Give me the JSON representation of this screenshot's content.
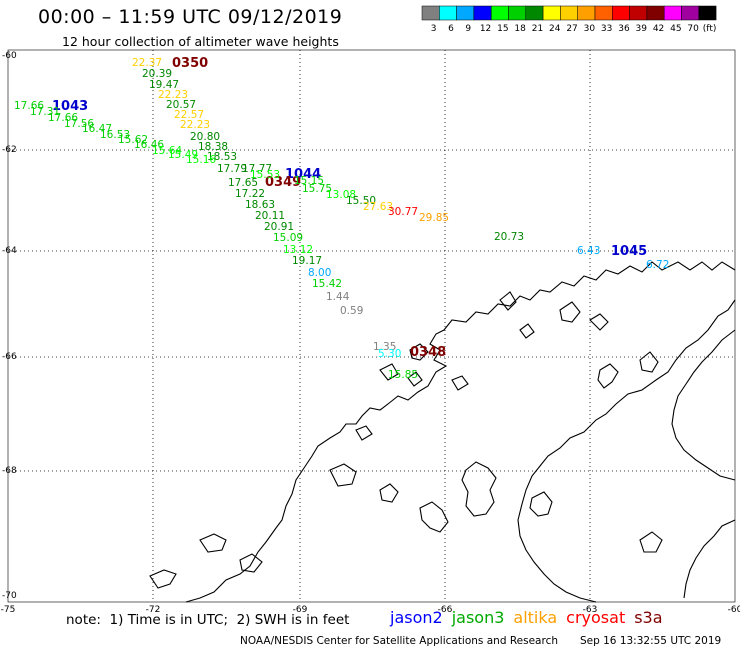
{
  "header": {
    "title": "00:00 – 11:59 UTC 09/12/2019",
    "subtitle": "12 hour collection of altimeter wave heights"
  },
  "colorbar": {
    "unit": "(ft)",
    "bins": [
      {
        "color": "#808080",
        "label": "3"
      },
      {
        "color": "#00ffff",
        "label": "6"
      },
      {
        "color": "#00a8ff",
        "label": "9"
      },
      {
        "color": "#0000ff",
        "label": "12"
      },
      {
        "color": "#00ff00",
        "label": "15"
      },
      {
        "color": "#00d000",
        "label": "18"
      },
      {
        "color": "#008800",
        "label": "21"
      },
      {
        "color": "#ffff00",
        "label": "24"
      },
      {
        "color": "#ffd000",
        "label": "27"
      },
      {
        "color": "#ffa000",
        "label": "30"
      },
      {
        "color": "#ff6000",
        "label": "33"
      },
      {
        "color": "#ff0000",
        "label": "36"
      },
      {
        "color": "#c00000",
        "label": "39"
      },
      {
        "color": "#800000",
        "label": "42"
      },
      {
        "color": "#ff00ff",
        "label": "45"
      },
      {
        "color": "#a000a0",
        "label": "70"
      },
      {
        "color": "#000000",
        "label": ""
      }
    ]
  },
  "axes": {
    "lat_labels": [
      "-60",
      "-62",
      "-64",
      "-66",
      "-68",
      "-70"
    ],
    "lon_labels": [
      "-75",
      "-72",
      "-69",
      "-66",
      "-63",
      "-60"
    ]
  },
  "passes": [
    {
      "label": "0350",
      "color": "#800000"
    },
    {
      "label": "1043",
      "color": "#0000cc"
    },
    {
      "label": "1044",
      "color": "#0000cc"
    },
    {
      "label": "0349",
      "color": "#800000"
    },
    {
      "label": "1045",
      "color": "#0000cc"
    },
    {
      "label": "0348",
      "color": "#800000"
    }
  ],
  "points": [
    {
      "text": "22.37",
      "color": "#ffd000"
    },
    {
      "text": "20.39",
      "color": "#008800"
    },
    {
      "text": "19.47",
      "color": "#008800"
    },
    {
      "text": "22.23",
      "color": "#ffd000"
    },
    {
      "text": "20.57",
      "color": "#008800"
    },
    {
      "text": "22.57",
      "color": "#ffd000"
    },
    {
      "text": "22.23",
      "color": "#ffd000"
    },
    {
      "text": "20.80",
      "color": "#008800"
    },
    {
      "text": "18.38",
      "color": "#008800"
    },
    {
      "text": "18.53",
      "color": "#008800"
    },
    {
      "text": "17.79",
      "color": "#008800"
    },
    {
      "text": "17.66",
      "color": "#00d000"
    },
    {
      "text": "17.31",
      "color": "#00d000"
    },
    {
      "text": "17.66",
      "color": "#00d000"
    },
    {
      "text": "17.56",
      "color": "#00d000"
    },
    {
      "text": "16.47",
      "color": "#00d000"
    },
    {
      "text": "16.53",
      "color": "#00d000"
    },
    {
      "text": "15.62",
      "color": "#00d000"
    },
    {
      "text": "16.46",
      "color": "#00d000"
    },
    {
      "text": "15.64",
      "color": "#00ff00"
    },
    {
      "text": "15.49",
      "color": "#00ff00"
    },
    {
      "text": "15.16",
      "color": "#00ff00"
    },
    {
      "text": "17.77",
      "color": "#008800"
    },
    {
      "text": "15.53",
      "color": "#00ff00"
    },
    {
      "text": "17.65",
      "color": "#008800"
    },
    {
      "text": "17.22",
      "color": "#008800"
    },
    {
      "text": "18.63",
      "color": "#008800"
    },
    {
      "text": "20.11",
      "color": "#008800"
    },
    {
      "text": "20.91",
      "color": "#008800"
    },
    {
      "text": "15.09",
      "color": "#00d000"
    },
    {
      "text": "13.12",
      "color": "#00ff00"
    },
    {
      "text": "19.17",
      "color": "#008800"
    },
    {
      "text": "8.00",
      "color": "#00a8ff"
    },
    {
      "text": "15.42",
      "color": "#00d000"
    },
    {
      "text": "1.44",
      "color": "#808080"
    },
    {
      "text": "0.59",
      "color": "#808080"
    },
    {
      "text": "15.15",
      "color": "#00d000"
    },
    {
      "text": "15.75",
      "color": "#00d000"
    },
    {
      "text": "13.08",
      "color": "#00ff00"
    },
    {
      "text": "15.50",
      "color": "#008800"
    },
    {
      "text": "27.63",
      "color": "#ffd000"
    },
    {
      "text": "30.77",
      "color": "#ff0000"
    },
    {
      "text": "29.85",
      "color": "#ffa000"
    },
    {
      "text": "20.73",
      "color": "#008800"
    },
    {
      "text": "6.43",
      "color": "#00a8ff"
    },
    {
      "text": "6.72",
      "color": "#00a8ff"
    },
    {
      "text": "1.35",
      "color": "#808080"
    },
    {
      "text": "5.30",
      "color": "#00ffff"
    },
    {
      "text": "15.85",
      "color": "#00d000"
    }
  ],
  "footer": {
    "note": "note:  1) Time is in UTC;  2) SWH is in feet",
    "satellites": [
      {
        "name": "jason2",
        "color": "#0000ff"
      },
      {
        "name": "jason3",
        "color": "#00aa00"
      },
      {
        "name": "altika",
        "color": "#ffa000"
      },
      {
        "name": "cryosat",
        "color": "#ff0000"
      },
      {
        "name": "s3a",
        "color": "#800000"
      }
    ],
    "credit": "NOAA/NESDIS Center for Satellite Applications and Research",
    "timestamp": "Sep 16 13:32:55 UTC 2019"
  }
}
